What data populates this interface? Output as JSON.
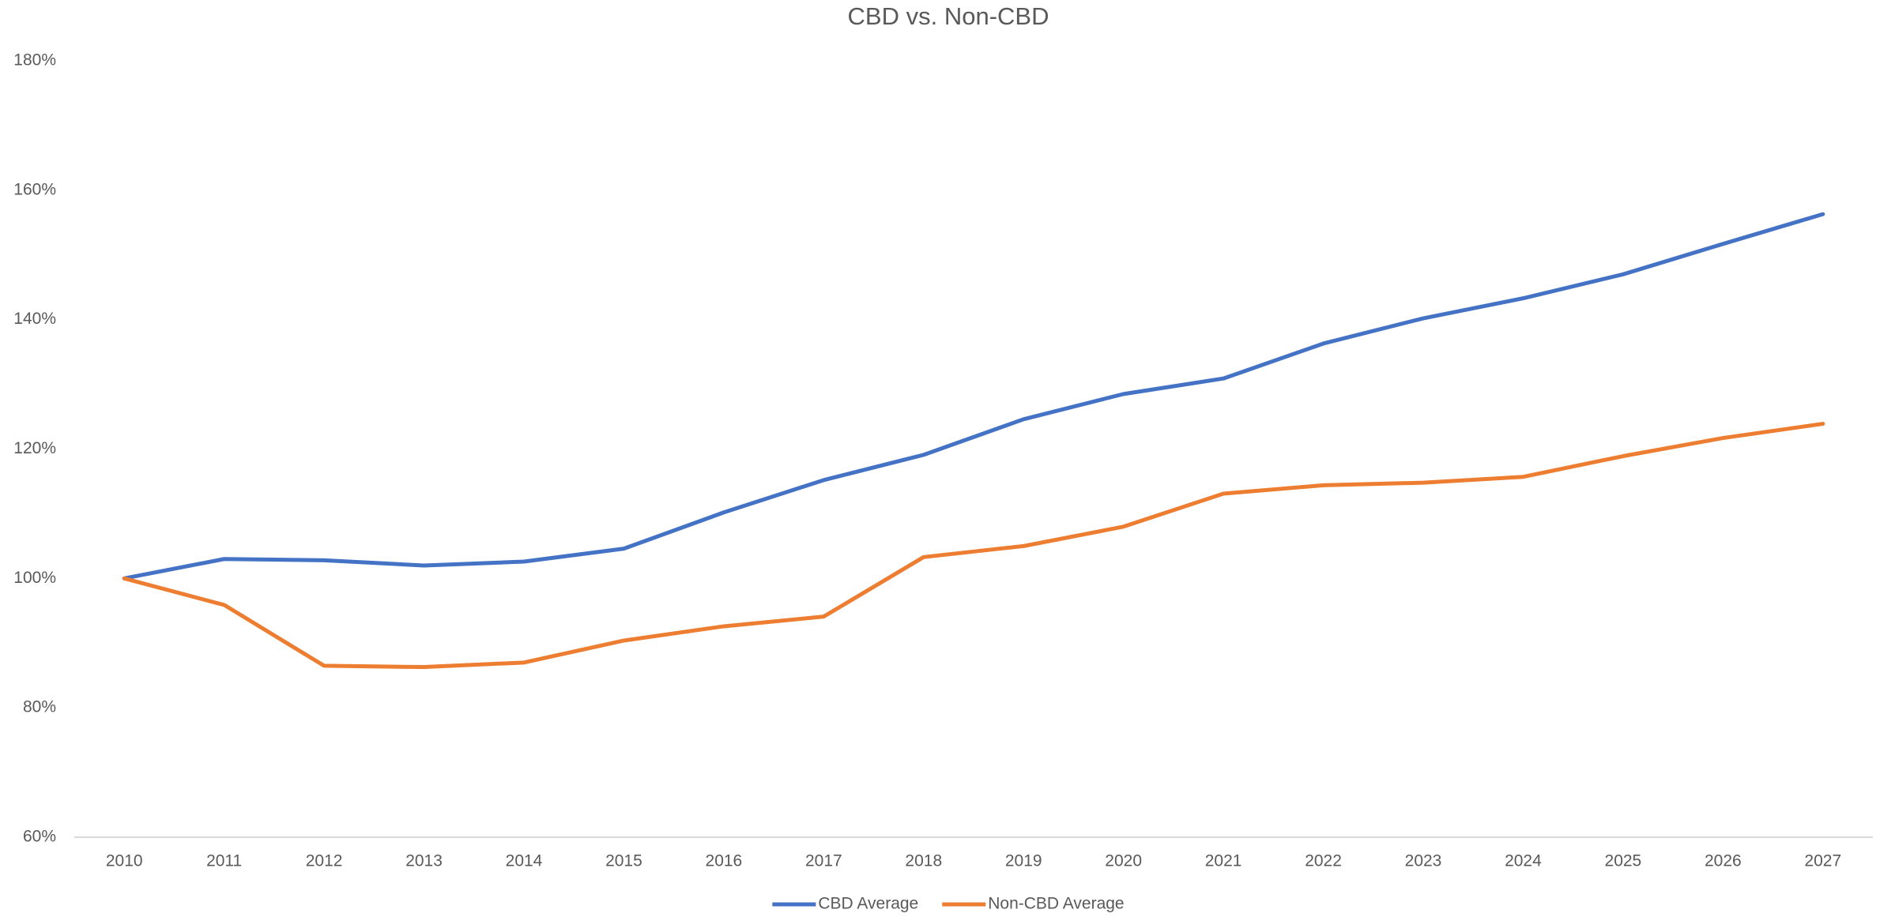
{
  "chart_data": {
    "type": "line",
    "title": "CBD vs. Non-CBD",
    "categories": [
      "2010",
      "2011",
      "2012",
      "2013",
      "2014",
      "2015",
      "2016",
      "2017",
      "2018",
      "2019",
      "2020",
      "2021",
      "2022",
      "2023",
      "2024",
      "2025",
      "2026",
      "2027"
    ],
    "series": [
      {
        "name": "CBD Average",
        "color": "#4472c4",
        "values": [
          100,
          103.0,
          102.8,
          102.0,
          102.6,
          104.6,
          110.2,
          115.2,
          119.1,
          124.6,
          128.5,
          130.9,
          136.3,
          140.2,
          143.3,
          147.0,
          151.7,
          156.3
        ]
      },
      {
        "name": "Non-CBD Average",
        "color": "#ed7d31",
        "values": [
          100,
          95.9,
          86.5,
          86.3,
          87.0,
          90.4,
          92.6,
          94.1,
          103.3,
          105.0,
          108.0,
          113.1,
          114.4,
          114.8,
          115.7,
          118.9,
          121.7,
          123.9
        ]
      }
    ],
    "ylim": [
      60,
      180
    ],
    "yticks": [
      {
        "value": 60,
        "label": "60%"
      },
      {
        "value": 80,
        "label": "80%"
      },
      {
        "value": 100,
        "label": "100%"
      },
      {
        "value": 120,
        "label": "120%"
      },
      {
        "value": 140,
        "label": "140%"
      },
      {
        "value": 160,
        "label": "160%"
      },
      {
        "value": 180,
        "label": "180%"
      }
    ],
    "grid": false,
    "legend": "bottom"
  }
}
